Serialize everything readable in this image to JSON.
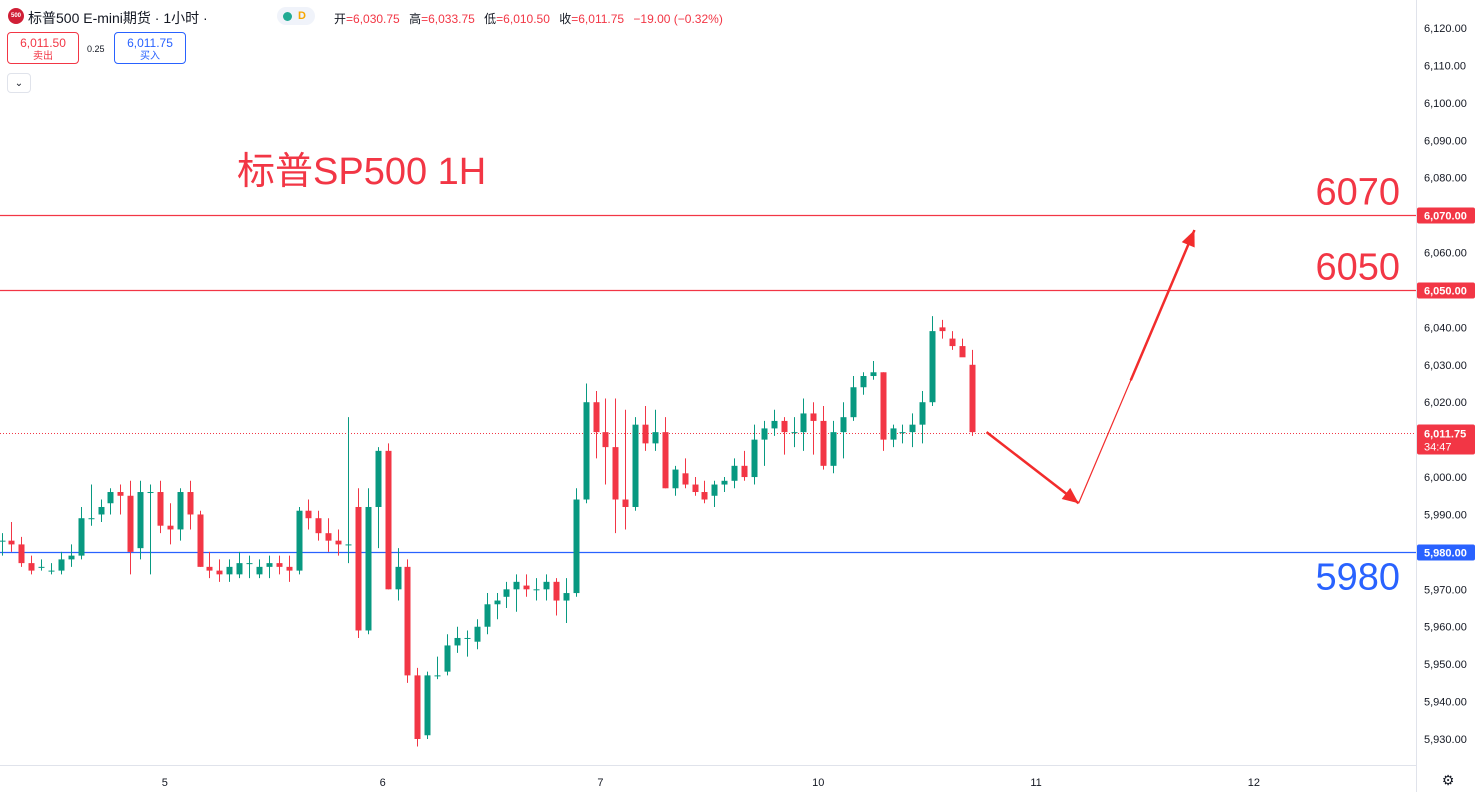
{
  "header": {
    "logo_text": "500",
    "symbol_title": "标普500 E-mini期货 · 1小时 ·",
    "interval_tag": "D",
    "ohlc": {
      "open_label": "开",
      "open": "=6,030.75",
      "high_label": "高",
      "high": "=6,033.75",
      "low_label": "低",
      "low": "=6,010.50",
      "close_label": "收",
      "close": "=6,011.75",
      "change": "−19.00 (−0.32%)"
    },
    "sell": {
      "price": "6,011.50",
      "label": "卖出"
    },
    "spread": "0.25",
    "buy": {
      "price": "6,011.75",
      "label": "买入"
    },
    "collapse_icon": "chevron-down-icon"
  },
  "settings_icon": "gear-icon",
  "chart_data": {
    "type": "candlestick",
    "title": "标普SP500 1H",
    "ylim": [
      5925,
      6125
    ],
    "y_ticks": [
      5930,
      5940,
      5950,
      5960,
      5970,
      5980,
      5990,
      6000,
      6010,
      6020,
      6030,
      6040,
      6050,
      6060,
      6070,
      6080,
      6090,
      6100,
      6110,
      6120
    ],
    "y_tick_labels": [
      "5,930.00",
      "5,940.00",
      "5,950.00",
      "5,960.00",
      "5,970.00",
      "5,980.00",
      "5,990.00",
      "6,000.00",
      "6,010.00",
      "6,020.00",
      "6,030.00",
      "6,040.00",
      "6,050.00",
      "6,060.00",
      "6,070.00",
      "6,080.00",
      "6,090.00",
      "6,100.00",
      "6,110.00",
      "6,120.00"
    ],
    "x_tick_labels": [
      {
        "label": "5",
        "bar": 16.5
      },
      {
        "label": "6",
        "bar": 38.5
      },
      {
        "label": "7",
        "bar": 60.5
      },
      {
        "label": "10",
        "bar": 82.5
      },
      {
        "label": "11",
        "bar": 104.5
      },
      {
        "label": "12",
        "bar": 126.5
      }
    ],
    "bars": [
      [
        5983,
        5985,
        5979,
        5983
      ],
      [
        5983,
        5988,
        5980,
        5982
      ],
      [
        5982,
        5984,
        5976,
        5977
      ],
      [
        5977,
        5979,
        5974,
        5975
      ],
      [
        5976,
        5978,
        5975,
        5976
      ],
      [
        5975,
        5977,
        5974,
        5975
      ],
      [
        5975,
        5980,
        5974,
        5978
      ],
      [
        5978,
        5982,
        5976,
        5979
      ],
      [
        5979,
        5992,
        5978,
        5989
      ],
      [
        5989,
        5998,
        5987,
        5989
      ],
      [
        5990,
        5994,
        5988,
        5992
      ],
      [
        5993,
        5997,
        5990,
        5996
      ],
      [
        5996,
        5998,
        5990,
        5995
      ],
      [
        5995,
        5999,
        5974,
        5980
      ],
      [
        5981,
        5999,
        5978,
        5996
      ],
      [
        5996,
        5998,
        5974,
        5996
      ],
      [
        5996,
        5999,
        5985,
        5987
      ],
      [
        5987,
        5993,
        5982,
        5986
      ],
      [
        5986,
        5997,
        5983,
        5996
      ],
      [
        5996,
        5999,
        5986,
        5990
      ],
      [
        5990,
        5991,
        5976,
        5976
      ],
      [
        5976,
        5980,
        5973,
        5975
      ],
      [
        5975,
        5978,
        5972,
        5974
      ],
      [
        5974,
        5978,
        5972,
        5976
      ],
      [
        5974,
        5980,
        5973,
        5977
      ],
      [
        5977,
        5979,
        5973,
        5977
      ],
      [
        5974,
        5978,
        5973,
        5976
      ],
      [
        5976,
        5979,
        5973,
        5977
      ],
      [
        5977,
        5979,
        5974,
        5976
      ],
      [
        5976,
        5979,
        5972,
        5975
      ],
      [
        5975,
        5992,
        5974,
        5991
      ],
      [
        5991,
        5994,
        5986,
        5989
      ],
      [
        5989,
        5991,
        5983,
        5985
      ],
      [
        5985,
        5989,
        5980,
        5983
      ],
      [
        5983,
        5986,
        5979,
        5982
      ],
      [
        5982,
        6016,
        5977,
        5982
      ],
      [
        5992,
        5997,
        5957,
        5959
      ],
      [
        5959,
        5997,
        5958,
        5992
      ],
      [
        5992,
        6008,
        5981,
        6007
      ],
      [
        6007,
        6009,
        5970,
        5970
      ],
      [
        5970,
        5981,
        5967,
        5976
      ],
      [
        5976,
        5978,
        5945,
        5947
      ],
      [
        5947,
        5949,
        5928,
        5930
      ],
      [
        5931,
        5948,
        5930,
        5947
      ],
      [
        5947,
        5952,
        5946,
        5947
      ],
      [
        5948,
        5958,
        5947,
        5955
      ],
      [
        5955,
        5960,
        5953,
        5957
      ],
      [
        5957,
        5959,
        5952,
        5957
      ],
      [
        5956,
        5962,
        5954,
        5960
      ],
      [
        5960,
        5969,
        5958,
        5966
      ],
      [
        5966,
        5969,
        5962,
        5967
      ],
      [
        5968,
        5972,
        5965,
        5970
      ],
      [
        5970,
        5974,
        5964,
        5972
      ],
      [
        5971,
        5974,
        5968,
        5970
      ],
      [
        5970,
        5973,
        5967,
        5970
      ],
      [
        5970,
        5974,
        5967,
        5972
      ],
      [
        5972,
        5973,
        5963,
        5967
      ],
      [
        5967,
        5973,
        5961,
        5969
      ],
      [
        5969,
        5997,
        5968,
        5994
      ],
      [
        5994,
        6025,
        5993,
        6020
      ],
      [
        6020,
        6023,
        6005,
        6012
      ],
      [
        6012,
        6021,
        5998,
        6008
      ],
      [
        6008,
        6021,
        5985,
        5994
      ],
      [
        5994,
        6018,
        5986,
        5992
      ],
      [
        5992,
        6016,
        5991,
        6014
      ],
      [
        6014,
        6019,
        6007,
        6009
      ],
      [
        6009,
        6018,
        6007,
        6012
      ],
      [
        6012,
        6016,
        5997,
        5997
      ],
      [
        5997,
        6003,
        5995,
        6002
      ],
      [
        6001,
        6005,
        5997,
        5998
      ],
      [
        5998,
        6000,
        5995,
        5996
      ],
      [
        5996,
        5999,
        5993,
        5994
      ],
      [
        5995,
        5999,
        5992,
        5998
      ],
      [
        5998,
        6000,
        5996,
        5999
      ],
      [
        5999,
        6005,
        5997,
        6003
      ],
      [
        6003,
        6007,
        5999,
        6000
      ],
      [
        6000,
        6014,
        5998,
        6010
      ],
      [
        6010,
        6015,
        6003,
        6013
      ],
      [
        6013,
        6018,
        6011,
        6015
      ],
      [
        6015,
        6016,
        6006,
        6012
      ],
      [
        6012,
        6016,
        6008,
        6012
      ],
      [
        6012,
        6021,
        6007,
        6017
      ],
      [
        6017,
        6020,
        6006,
        6015
      ],
      [
        6015,
        6019,
        6002,
        6003
      ],
      [
        6003,
        6015,
        6001,
        6012
      ],
      [
        6012,
        6020,
        6005,
        6016
      ],
      [
        6016,
        6027,
        6015,
        6024
      ],
      [
        6024,
        6028,
        6022,
        6027
      ],
      [
        6027,
        6031,
        6026,
        6028
      ],
      [
        6028,
        6028,
        6007,
        6010
      ],
      [
        6010,
        6014,
        6008,
        6013
      ],
      [
        6012,
        6014,
        6009,
        6012
      ],
      [
        6012,
        6017,
        6008,
        6014
      ],
      [
        6014,
        6023,
        6009,
        6020
      ],
      [
        6020,
        6043,
        6019,
        6039
      ],
      [
        6040,
        6042,
        6037,
        6039
      ],
      [
        6037,
        6039,
        6034,
        6035
      ],
      [
        6035,
        6037,
        6033,
        6032
      ],
      [
        6030,
        6034,
        6011,
        6012
      ]
    ],
    "current_bar_index": 98,
    "levels": [
      {
        "price": 6070,
        "label": "6070",
        "axis_label": "6,070.00",
        "color": "#f23645"
      },
      {
        "price": 6050,
        "label": "6050",
        "axis_label": "6,050.00",
        "color": "#f23645"
      },
      {
        "price": 5980,
        "label": "5980",
        "axis_label": "5,980.00",
        "color": "#2962ff"
      }
    ],
    "last_price": {
      "price": 6011.75,
      "label": "6,011.75",
      "countdown": "34:47",
      "color": "#f23645"
    },
    "projection": {
      "color": "#f22c2c",
      "points": [
        {
          "bar": 99.5,
          "price": 6012
        },
        {
          "bar": 108.8,
          "price": 5993
        },
        {
          "bar": 120.5,
          "price": 6066
        }
      ]
    },
    "colors": {
      "up": "#089981",
      "down": "#f23645",
      "title": "#f23645"
    }
  }
}
